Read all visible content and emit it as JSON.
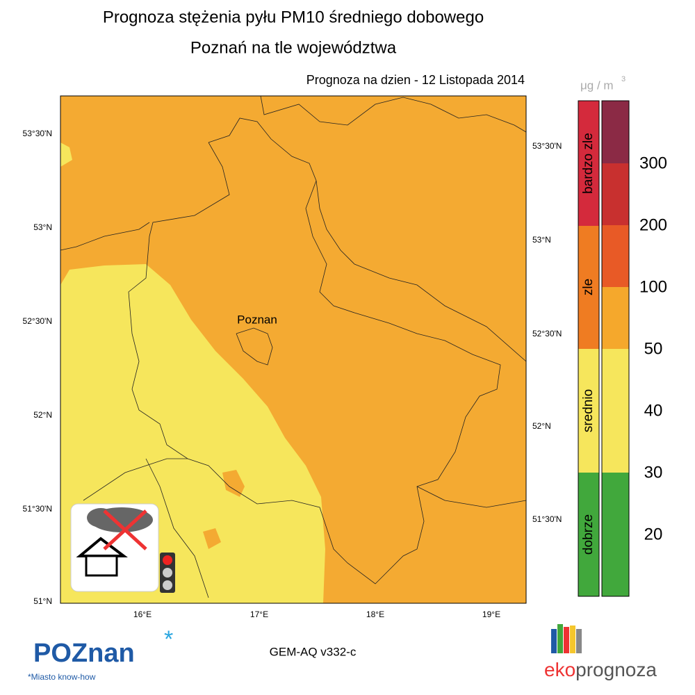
{
  "header": {
    "title_line1": "Prognoza stężenia pyłu PM10 średniego dobowego",
    "title_line2": "Poznań na tle województwa",
    "forecast_date": "Prognoza na dzien -  12 Listopada 2014"
  },
  "map": {
    "lat_labels_left": [
      "53°30'N",
      "53°N",
      "52°30'N",
      "52°N",
      "51°30'N",
      "51°N"
    ],
    "lat_labels_right": [
      "53°30'N",
      "53°N",
      "52°30'N",
      "52°N",
      "51°30'N"
    ],
    "lon_labels": [
      "16°E",
      "17°E",
      "18°E",
      "19°E"
    ],
    "city_label": "Poznan"
  },
  "legend": {
    "unit_base": "μg / m",
    "unit_exp": "3",
    "categories": [
      "bardzo zle",
      "zle",
      "srednio",
      "dobrze"
    ],
    "levels": [
      300,
      200,
      100,
      50,
      40,
      30,
      20
    ]
  },
  "footer": {
    "model": "GEM-AQ v332-c",
    "city_logo": "POZnan",
    "city_tagline": "*Miasto know-how",
    "brand_part1": "eko",
    "brand_part2": "prognoza"
  }
}
